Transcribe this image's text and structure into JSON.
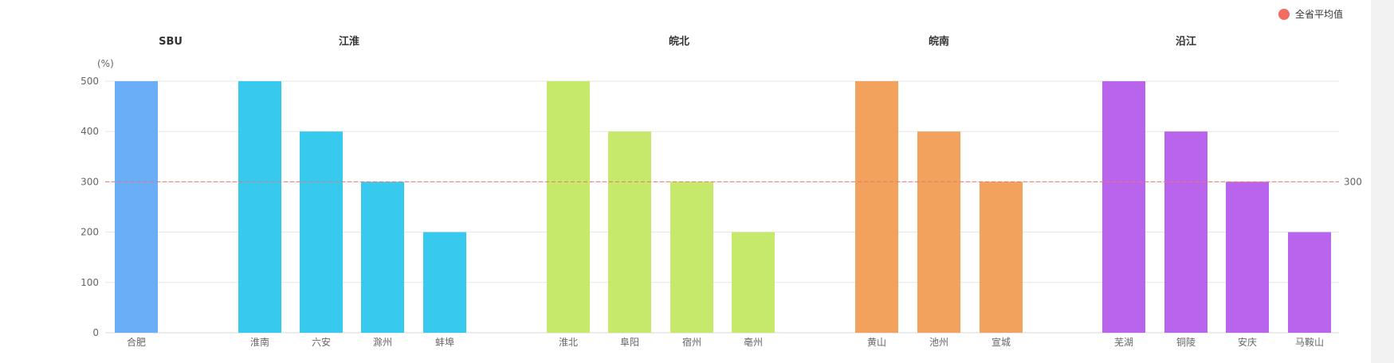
{
  "chart_data": {
    "type": "bar",
    "unit_label": "(%)",
    "ylim": [
      0,
      500
    ],
    "y_ticks": [
      0,
      100,
      200,
      300,
      400,
      500
    ],
    "grid": true,
    "legend": {
      "position": "top-right",
      "items": [
        {
          "name": "全省平均值",
          "color": "#f36c60"
        }
      ]
    },
    "average_line": {
      "value": 300,
      "label": "300",
      "color": "#f0766a"
    },
    "groups": [
      {
        "name": "SBU",
        "color": "#69aef7",
        "categories": [
          "合肥"
        ],
        "values": [
          500
        ]
      },
      {
        "name": "江淮",
        "color": "#38c9ee",
        "categories": [
          "淮南",
          "六安",
          "滁州",
          "蚌埠"
        ],
        "values": [
          500,
          400,
          300,
          200
        ]
      },
      {
        "name": "皖北",
        "color": "#c6e96b",
        "categories": [
          "淮北",
          "阜阳",
          "宿州",
          "亳州"
        ],
        "values": [
          500,
          400,
          300,
          200
        ]
      },
      {
        "name": "皖南",
        "color": "#f2a25c",
        "categories": [
          "黄山",
          "池州",
          "宣城"
        ],
        "values": [
          500,
          400,
          300
        ]
      },
      {
        "name": "沿江",
        "color": "#b964ec",
        "categories": [
          "芜湖",
          "铜陵",
          "安庆",
          "马鞍山"
        ],
        "values": [
          500,
          400,
          300,
          200
        ]
      }
    ]
  }
}
